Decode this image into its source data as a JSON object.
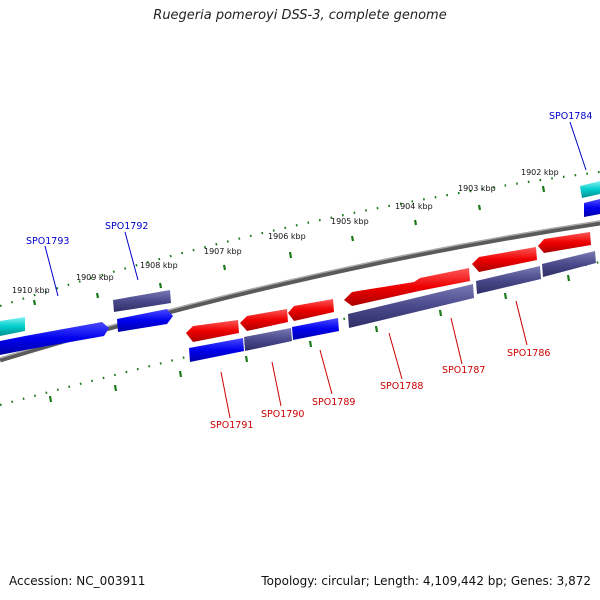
{
  "header": {
    "title": "Ruegeria pomeroyi DSS-3, complete genome"
  },
  "footer": {
    "accession_label": "Accession: NC_003911",
    "summary": "Topology: circular; Length: 4,109,442 bp; Genes: 3,872"
  },
  "colors": {
    "forward_gene": "#0000ee",
    "reverse_gene": "#ee0000",
    "gene_shadow": "#4a4a8c",
    "rna_gene": "#00cccc",
    "backbone": "#808080",
    "tick": "#1a7a1a",
    "label_blue": "#0000cc",
    "label_red": "#cc0000"
  },
  "scale_labels": [
    "1902 kbp",
    "1903 kbp",
    "1904 kbp",
    "1905 kbp",
    "1906 kbp",
    "1907 kbp",
    "1908 kbp",
    "1909 kbp",
    "1910 kbp"
  ],
  "genes": [
    {
      "id": "SPO1784",
      "color": "blue"
    },
    {
      "id": "SPO1786",
      "color": "red"
    },
    {
      "id": "SPO1787",
      "color": "red"
    },
    {
      "id": "SPO1788",
      "color": "red"
    },
    {
      "id": "SPO1789",
      "color": "red"
    },
    {
      "id": "SPO1790",
      "color": "red"
    },
    {
      "id": "SPO1791",
      "color": "red"
    },
    {
      "id": "SPO1792",
      "color": "blue"
    },
    {
      "id": "SPO1793",
      "color": "blue"
    }
  ]
}
